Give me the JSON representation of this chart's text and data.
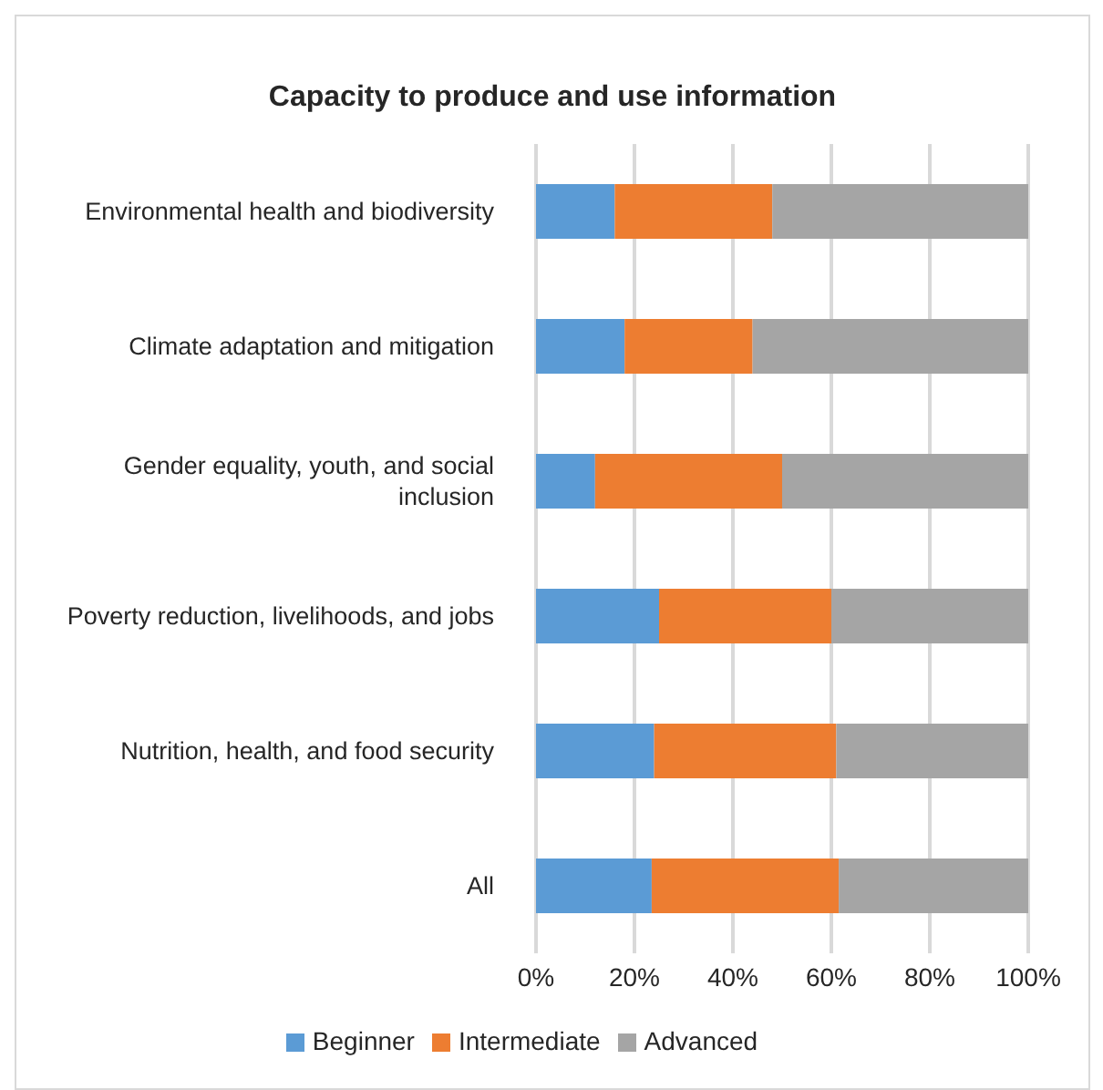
{
  "chart_data": {
    "type": "bar",
    "orientation": "horizontal",
    "stacked": true,
    "title": "Capacity to produce and use information",
    "categories": [
      "Environmental health and biodiversity",
      "Climate adaptation and mitigation",
      "Gender equality, youth, and social inclusion",
      "Poverty reduction, livelihoods, and jobs",
      "Nutrition, health, and food security",
      "All"
    ],
    "series": [
      {
        "name": "Beginner",
        "color": "#5b9bd5",
        "values": [
          16,
          18,
          12,
          25,
          24,
          23.5
        ]
      },
      {
        "name": "Intermediate",
        "color": "#ed7d31",
        "values": [
          32,
          26,
          38,
          35,
          37,
          38
        ]
      },
      {
        "name": "Advanced",
        "color": "#a5a5a5",
        "values": [
          52,
          56,
          50,
          40,
          39,
          38.5
        ]
      }
    ],
    "xlim": [
      0,
      100
    ],
    "xticks": [
      {
        "value": 0,
        "label": "0%"
      },
      {
        "value": 20,
        "label": "20%"
      },
      {
        "value": 40,
        "label": "40%"
      },
      {
        "value": 60,
        "label": "60%"
      },
      {
        "value": 80,
        "label": "80%"
      },
      {
        "value": 100,
        "label": "100%"
      }
    ],
    "grid": "x",
    "legend": "bottom"
  }
}
